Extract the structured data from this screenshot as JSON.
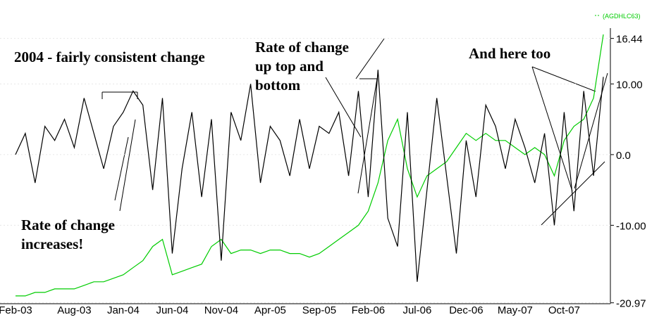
{
  "chart_data": {
    "type": "line",
    "categories": [
      "Feb-03",
      null,
      null,
      null,
      null,
      null,
      "Aug-03",
      null,
      null,
      null,
      null,
      "Jan-04",
      null,
      null,
      null,
      null,
      "Jun-04",
      null,
      null,
      null,
      null,
      "Nov-04",
      null,
      null,
      null,
      null,
      "Apr-05",
      null,
      null,
      null,
      null,
      "Sep-05",
      null,
      null,
      null,
      null,
      "Feb-06",
      null,
      null,
      null,
      null,
      "Jul-06",
      null,
      null,
      null,
      null,
      "Dec-06",
      null,
      null,
      null,
      null,
      "May-07",
      null,
      null,
      null,
      null,
      "Oct-07",
      null,
      null,
      null,
      null
    ],
    "series": [
      {
        "color": "#000000",
        "values": [
          0,
          3,
          -4,
          4,
          2,
          5,
          1,
          8,
          3,
          -2,
          4,
          6,
          9,
          7,
          -5,
          8,
          -14,
          -2,
          6,
          -6,
          5,
          -15,
          6,
          2,
          10,
          -4,
          4,
          2,
          -3,
          5,
          -2,
          4,
          3,
          6,
          -3,
          9,
          -6,
          12,
          -9,
          -13,
          6,
          -18,
          -5,
          8,
          -3,
          -14,
          2,
          -6,
          7,
          4,
          -2,
          5,
          1,
          -4,
          3,
          -10,
          6,
          -8,
          9,
          -3,
          11
        ]
      },
      {
        "name": "(AGDHLC63)",
        "color": "#00cc00",
        "values": [
          -20,
          -20,
          -19.5,
          -19.5,
          -19,
          -19,
          -19,
          -18.5,
          -18,
          -18,
          -17.5,
          -17,
          -16,
          -15,
          -13,
          -12,
          -17,
          -16.5,
          -16,
          -15.5,
          -13,
          -12,
          -14,
          -13.5,
          -13.5,
          -14,
          -13.5,
          -13.5,
          -14,
          -14,
          -14.5,
          -14,
          -13,
          -12,
          -11,
          -10,
          -8,
          -4,
          2,
          5,
          -2,
          -6,
          -3,
          -2,
          -1,
          1,
          3,
          2,
          3,
          2,
          2,
          1,
          0,
          1,
          0,
          -3,
          2,
          4,
          5,
          8,
          17
        ]
      }
    ],
    "ylim": [
      -21,
      17.3
    ],
    "yticks": [
      16.44,
      {
        "value": 10,
        "label": "10.00"
      },
      {
        "value": 0,
        "label": "0.0"
      },
      {
        "value": -10,
        "label": "-10.00"
      },
      -20.97
    ],
    "grid": true,
    "annotations": [
      {
        "lines": [
          "2004 - fairly consistent change"
        ]
      },
      {
        "lines": [
          "Rate of change",
          "increases!"
        ]
      },
      {
        "lines": [
          "Rate of change",
          "up top and",
          "bottom"
        ]
      },
      {
        "lines": [
          "And here too"
        ]
      }
    ]
  }
}
